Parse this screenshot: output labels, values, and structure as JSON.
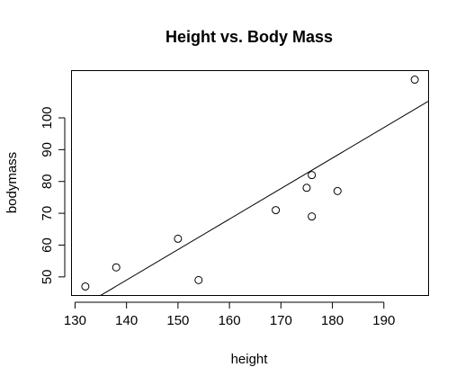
{
  "chart_data": {
    "type": "scatter",
    "title": "Height vs. Body Mass",
    "xlabel": "height",
    "ylabel": "bodymass",
    "xlim": [
      129.4,
      198.6
    ],
    "ylim": [
      44.3,
      114.7
    ],
    "x_ticks": [
      130,
      140,
      150,
      160,
      170,
      180,
      190
    ],
    "y_ticks": [
      50,
      60,
      70,
      80,
      90,
      100
    ],
    "grid": false,
    "legend": "none",
    "points": [
      {
        "x": 132,
        "y": 47
      },
      {
        "x": 138,
        "y": 53
      },
      {
        "x": 150,
        "y": 62
      },
      {
        "x": 154,
        "y": 49
      },
      {
        "x": 169,
        "y": 71
      },
      {
        "x": 175,
        "y": 78
      },
      {
        "x": 176,
        "y": 82
      },
      {
        "x": 176,
        "y": 69
      },
      {
        "x": 181,
        "y": 77
      },
      {
        "x": 196,
        "y": 112
      }
    ],
    "regression_line": {
      "intercept": -85.2,
      "slope": 0.9586
    },
    "colors": {
      "points": "#000000",
      "line": "#000000",
      "background": "#ffffff"
    }
  }
}
